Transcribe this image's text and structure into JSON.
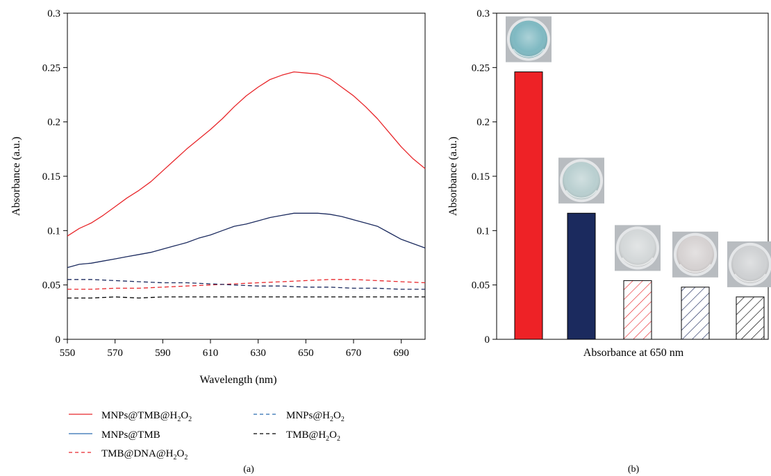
{
  "chart_data": [
    {
      "type": "line",
      "panel_label": "(a)",
      "xlabel": "Wavelength (nm)",
      "ylabel": "Absorbance (a.u.)",
      "xlim": [
        550,
        700
      ],
      "ylim": [
        0,
        0.3
      ],
      "xticks": [
        550,
        570,
        590,
        610,
        630,
        650,
        670,
        690
      ],
      "yticks": [
        0,
        0.05,
        0.1,
        0.15,
        0.2,
        0.25,
        0.3
      ],
      "ytick_labels": [
        "0",
        "0.05",
        "0.1",
        "0.15",
        "0.2",
        "0.25",
        "0.3"
      ],
      "grid": false,
      "legend_position": "bottom",
      "series": [
        {
          "name": "MNPs@TMB@H2O2",
          "color": "#e8262a",
          "dash": "solid",
          "x": [
            550,
            555,
            560,
            565,
            570,
            575,
            580,
            585,
            590,
            595,
            600,
            605,
            610,
            615,
            620,
            625,
            630,
            635,
            640,
            645,
            650,
            655,
            660,
            665,
            670,
            675,
            680,
            685,
            690,
            695,
            700
          ],
          "y": [
            0.095,
            0.102,
            0.107,
            0.114,
            0.122,
            0.13,
            0.137,
            0.145,
            0.155,
            0.165,
            0.175,
            0.184,
            0.193,
            0.203,
            0.214,
            0.224,
            0.232,
            0.239,
            0.243,
            0.246,
            0.245,
            0.244,
            0.24,
            0.232,
            0.224,
            0.214,
            0.203,
            0.19,
            0.177,
            0.166,
            0.157
          ]
        },
        {
          "name": "MNPs@TMB",
          "color": "#1b2a5e",
          "dash": "solid",
          "x": [
            550,
            555,
            560,
            565,
            570,
            575,
            580,
            585,
            590,
            595,
            600,
            605,
            610,
            615,
            620,
            625,
            630,
            635,
            640,
            645,
            650,
            655,
            660,
            665,
            670,
            675,
            680,
            685,
            690,
            695,
            700
          ],
          "y": [
            0.066,
            0.069,
            0.07,
            0.072,
            0.074,
            0.076,
            0.078,
            0.08,
            0.083,
            0.086,
            0.089,
            0.093,
            0.096,
            0.1,
            0.104,
            0.106,
            0.109,
            0.112,
            0.114,
            0.116,
            0.116,
            0.116,
            0.115,
            0.113,
            0.11,
            0.107,
            0.104,
            0.098,
            0.092,
            0.088,
            0.084
          ]
        },
        {
          "name": "TMB@DNA@H2O2",
          "color": "#e8262a",
          "dash": "dashed",
          "x": [
            550,
            560,
            570,
            580,
            590,
            600,
            610,
            620,
            630,
            640,
            650,
            660,
            670,
            680,
            690,
            700
          ],
          "y": [
            0.046,
            0.046,
            0.047,
            0.047,
            0.048,
            0.049,
            0.05,
            0.051,
            0.052,
            0.053,
            0.054,
            0.055,
            0.055,
            0.054,
            0.053,
            0.052
          ]
        },
        {
          "name": "MNPs@H2O2",
          "color": "#1b2a5e",
          "dash": "dashed",
          "x": [
            550,
            560,
            570,
            580,
            590,
            600,
            610,
            620,
            630,
            640,
            650,
            660,
            670,
            680,
            690,
            700
          ],
          "y": [
            0.055,
            0.055,
            0.054,
            0.053,
            0.052,
            0.052,
            0.051,
            0.05,
            0.049,
            0.049,
            0.048,
            0.048,
            0.047,
            0.047,
            0.046,
            0.046
          ]
        },
        {
          "name": "TMB@H2O2",
          "color": "#000000",
          "dash": "dashed",
          "x": [
            550,
            560,
            570,
            580,
            590,
            600,
            610,
            620,
            630,
            640,
            650,
            660,
            670,
            680,
            690,
            700
          ],
          "y": [
            0.038,
            0.038,
            0.039,
            0.038,
            0.039,
            0.039,
            0.039,
            0.039,
            0.039,
            0.039,
            0.039,
            0.039,
            0.039,
            0.039,
            0.039,
            0.039
          ]
        }
      ]
    },
    {
      "type": "bar",
      "panel_label": "(b)",
      "xlabel": "Absorbance at 650 nm",
      "ylabel": "Absorbance (a.u.)",
      "ylim": [
        0,
        0.3
      ],
      "yticks": [
        0,
        0.05,
        0.1,
        0.15,
        0.2,
        0.25,
        0.3
      ],
      "ytick_labels": [
        "0",
        "0.05",
        "0.1",
        "0.15",
        "0.2",
        "0.25",
        "0.3"
      ],
      "grid": false,
      "values": [
        0.246,
        0.116,
        0.054,
        0.048,
        0.039
      ],
      "bars": [
        {
          "value": 0.246,
          "fill": "#ee2226",
          "pattern": "solid",
          "well_tint": "#7fb9c2"
        },
        {
          "value": 0.116,
          "fill": "#1b2a5e",
          "pattern": "solid",
          "well_tint": "#b9cfd0"
        },
        {
          "value": 0.054,
          "fill": "#e8262a",
          "pattern": "hatch",
          "well_tint": "#d4d8d9"
        },
        {
          "value": 0.048,
          "fill": "#1b2a5e",
          "pattern": "hatch",
          "well_tint": "#d6d2d2"
        },
        {
          "value": 0.039,
          "fill": "#000000",
          "pattern": "hatch",
          "well_tint": "#cfd1d3"
        }
      ]
    }
  ]
}
